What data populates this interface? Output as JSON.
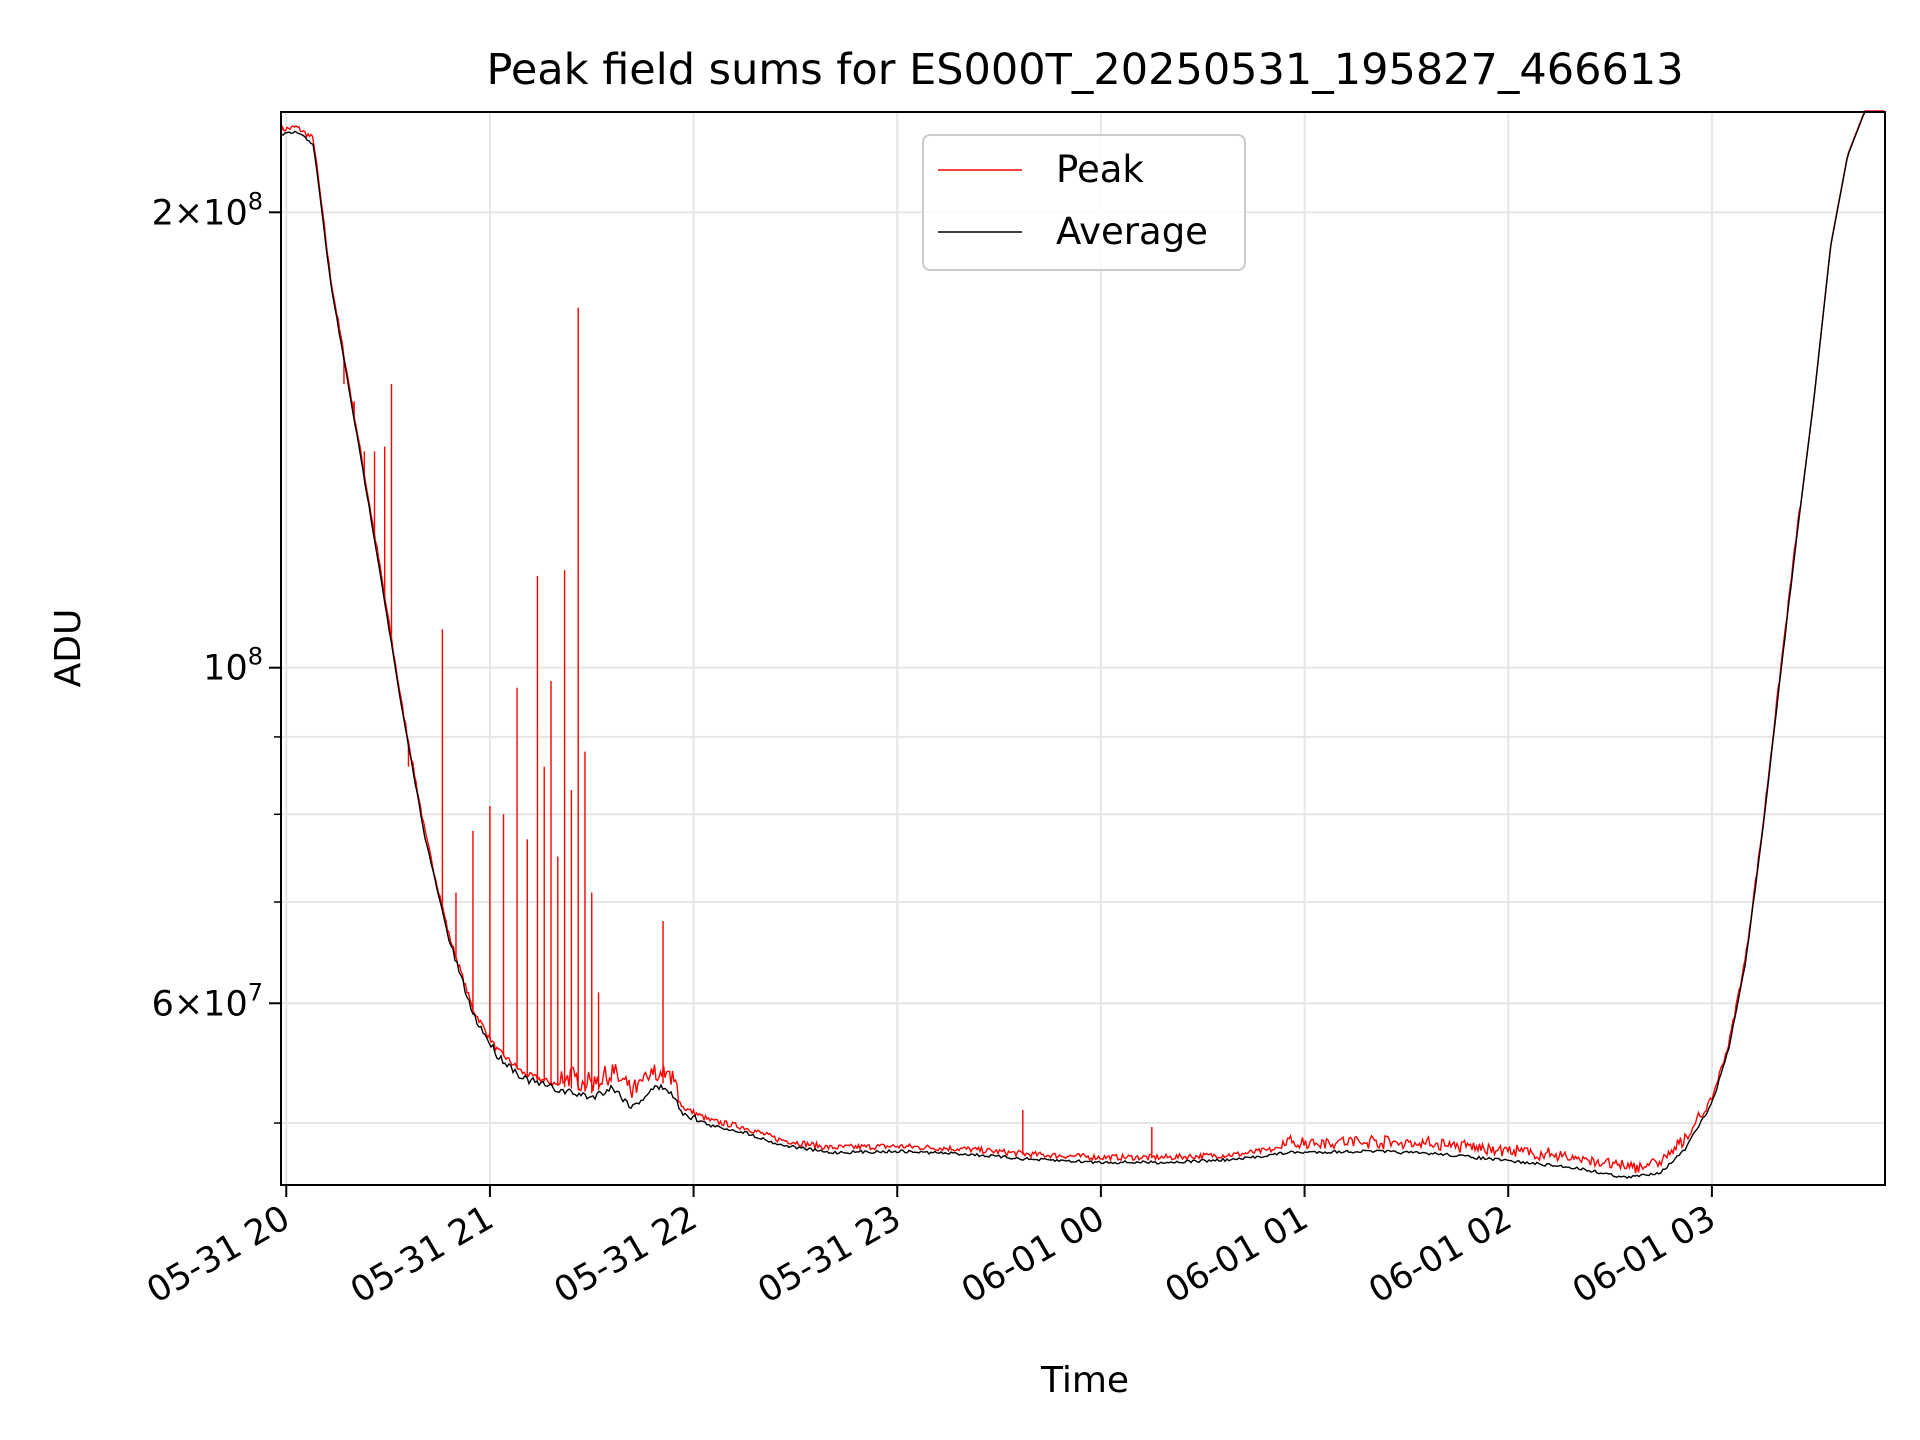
{
  "chart_data": {
    "type": "line",
    "title": "Peak field sums for ES000T_20250531_195827_466613",
    "xlabel": "Time",
    "ylabel": "ADU",
    "x_axis": {
      "type": "time",
      "range": [
        "2025-05-31 19:58:27",
        "2025-06-01 03:51:00"
      ],
      "ticks": [
        {
          "value": "2025-05-31 20:00",
          "label": "05-31 20"
        },
        {
          "value": "2025-05-31 21:00",
          "label": "05-31 21"
        },
        {
          "value": "2025-05-31 22:00",
          "label": "05-31 22"
        },
        {
          "value": "2025-05-31 23:00",
          "label": "05-31 23"
        },
        {
          "value": "2025-06-01 00:00",
          "label": "06-01 00"
        },
        {
          "value": "2025-06-01 01:00",
          "label": "06-01 01"
        },
        {
          "value": "2025-06-01 02:00",
          "label": "06-01 02"
        },
        {
          "value": "2025-06-01 03:00",
          "label": "06-01 03"
        }
      ]
    },
    "y_axis": {
      "scale": "log",
      "range": [
        45500000,
        233000000
      ],
      "major_ticks": [
        {
          "value": 60000000,
          "label_mantissa": "6",
          "label_exp": "7"
        },
        {
          "value": 100000000,
          "label_mantissa": "",
          "label_exp": "8"
        },
        {
          "value": 200000000,
          "label_mantissa": "2",
          "label_exp": "8"
        }
      ],
      "minor_gridlines": [
        50000000,
        70000000,
        80000000,
        90000000
      ]
    },
    "grid": true,
    "legend": {
      "position": "top-center",
      "entries": [
        "Peak",
        "Average"
      ]
    },
    "series": [
      {
        "name": "Average",
        "color": "#000000",
        "points": [
          [
            "2025-05-31 19:58:27",
            225000000
          ],
          [
            "2025-05-31 20:03:00",
            226000000
          ],
          [
            "2025-05-31 20:08:00",
            222000000
          ],
          [
            "2025-05-31 20:13:00",
            180000000
          ],
          [
            "2025-05-31 20:20:00",
            146000000
          ],
          [
            "2025-05-31 20:27:00",
            118000000
          ],
          [
            "2025-05-31 20:34:00",
            94000000
          ],
          [
            "2025-05-31 20:41:00",
            77000000
          ],
          [
            "2025-05-31 20:48:00",
            66000000
          ],
          [
            "2025-05-31 20:55:00",
            59000000
          ],
          [
            "2025-05-31 21:02:00",
            55500000
          ],
          [
            "2025-05-31 21:10:00",
            53500000
          ],
          [
            "2025-05-31 21:20:00",
            52600000
          ],
          [
            "2025-05-31 21:30:00",
            52000000
          ],
          [
            "2025-05-31 21:36:00",
            52800000
          ],
          [
            "2025-05-31 21:42:00",
            51200000
          ],
          [
            "2025-05-31 21:48:00",
            52700000
          ],
          [
            "2025-05-31 21:52:00",
            52800000
          ],
          [
            "2025-05-31 21:57:00",
            50800000
          ],
          [
            "2025-05-31 22:05:00",
            49800000
          ],
          [
            "2025-05-31 22:15:00",
            49300000
          ],
          [
            "2025-05-31 22:25:00",
            48400000
          ],
          [
            "2025-05-31 22:40:00",
            47800000
          ],
          [
            "2025-05-31 23:00:00",
            47900000
          ],
          [
            "2025-05-31 23:20:00",
            47700000
          ],
          [
            "2025-05-31 23:40:00",
            47300000
          ],
          [
            "2025-06-01 00:00:00",
            47100000
          ],
          [
            "2025-06-01 00:20:00",
            47100000
          ],
          [
            "2025-06-01 00:40:00",
            47300000
          ],
          [
            "2025-06-01 00:55:00",
            47800000
          ],
          [
            "2025-06-01 01:20:00",
            47900000
          ],
          [
            "2025-06-01 01:40:00",
            47700000
          ],
          [
            "2025-06-01 02:00:00",
            47200000
          ],
          [
            "2025-06-01 02:20:00",
            46700000
          ],
          [
            "2025-06-01 02:35:00",
            46000000
          ],
          [
            "2025-06-01 02:45:00",
            46400000
          ],
          [
            "2025-06-01 02:52:00",
            48000000
          ],
          [
            "2025-06-01 03:00:00",
            51500000
          ],
          [
            "2025-06-01 03:05:00",
            56000000
          ],
          [
            "2025-06-01 03:10:00",
            64000000
          ],
          [
            "2025-06-01 03:15:00",
            78000000
          ],
          [
            "2025-06-01 03:20:00",
            98000000
          ],
          [
            "2025-06-01 03:25:00",
            122000000
          ],
          [
            "2025-06-01 03:30:00",
            150000000
          ],
          [
            "2025-06-01 03:35:00",
            190000000
          ],
          [
            "2025-06-01 03:40:00",
            218000000
          ],
          [
            "2025-06-01 03:45:00",
            233000000
          ],
          [
            "2025-06-01 03:51:00",
            233000000
          ]
        ]
      },
      {
        "name": "Peak",
        "color": "#ff0000",
        "spikes": [
          [
            "2025-05-31 20:17:00",
            154000000
          ],
          [
            "2025-05-31 20:20:00",
            150000000
          ],
          [
            "2025-05-31 20:23:00",
            139000000
          ],
          [
            "2025-05-31 20:26:00",
            139000000
          ],
          [
            "2025-05-31 20:29:00",
            140000000
          ],
          [
            "2025-05-31 20:31:00",
            154000000
          ],
          [
            "2025-05-31 20:36:00",
            86000000
          ],
          [
            "2025-05-31 20:42:00",
            76000000
          ],
          [
            "2025-05-31 20:46:00",
            106000000
          ],
          [
            "2025-05-31 20:50:00",
            71000000
          ],
          [
            "2025-05-31 20:55:00",
            78000000
          ],
          [
            "2025-05-31 21:00:00",
            81000000
          ],
          [
            "2025-05-31 21:04:00",
            80000000
          ],
          [
            "2025-05-31 21:08:00",
            97000000
          ],
          [
            "2025-05-31 21:11:00",
            77000000
          ],
          [
            "2025-05-31 21:14:00",
            115000000
          ],
          [
            "2025-05-31 21:16:00",
            86000000
          ],
          [
            "2025-05-31 21:18:00",
            98000000
          ],
          [
            "2025-05-31 21:20:00",
            75000000
          ],
          [
            "2025-05-31 21:22:00",
            116000000
          ],
          [
            "2025-05-31 21:24:00",
            83000000
          ],
          [
            "2025-05-31 21:26:00",
            173000000
          ],
          [
            "2025-05-31 21:28:00",
            88000000
          ],
          [
            "2025-05-31 21:30:00",
            71000000
          ],
          [
            "2025-05-31 21:32:00",
            61000000
          ],
          [
            "2025-05-31 21:51:00",
            68000000
          ],
          [
            "2025-05-31 23:37:00",
            51000000
          ],
          [
            "2025-06-01 00:15:00",
            49700000
          ]
        ]
      }
    ]
  }
}
